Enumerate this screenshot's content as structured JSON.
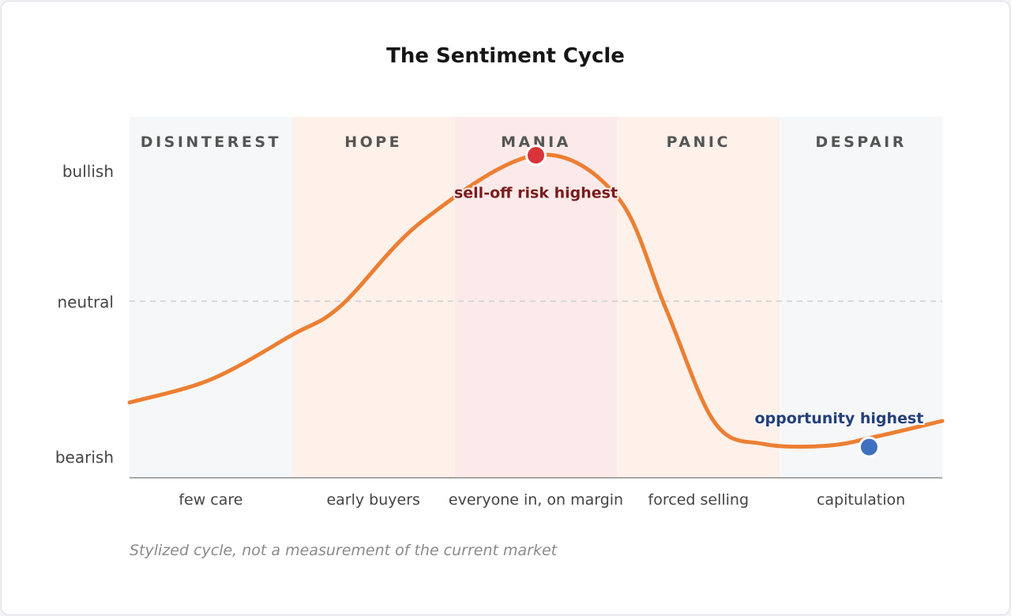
{
  "chart_data": {
    "type": "line",
    "title": "The Sentiment Cycle",
    "caption": "Stylized cycle, not a measurement of the current market",
    "phases": [
      {
        "name": "DISINTEREST",
        "description": "few care",
        "color": "#f6f7f9"
      },
      {
        "name": "HOPE",
        "description": "early buyers",
        "color": "#fdf1ea"
      },
      {
        "name": "MANIA",
        "description": "everyone in, on margin",
        "color": "#fceaea"
      },
      {
        "name": "PANIC",
        "description": "forced selling",
        "color": "#fdf1ea"
      },
      {
        "name": "DESPAIR",
        "description": "capitulation",
        "color": "#f6f7f9"
      }
    ],
    "y_ticks": [
      {
        "label": "bullish",
        "value": 1
      },
      {
        "label": "neutral",
        "value": 0
      },
      {
        "label": "bearish",
        "value": -1
      }
    ],
    "xlim": [
      0,
      5
    ],
    "ylim": [
      -1.15,
      1.2
    ],
    "neutral_line": 0,
    "series": [
      {
        "color": "#ec7f33",
        "x": [
          0,
          0.5,
          1.0,
          1.3,
          1.8,
          2.5,
          3.0,
          3.3,
          3.6,
          3.9,
          4.3,
          4.6,
          5.0
        ],
        "y": [
          -0.66,
          -0.51,
          -0.22,
          -0.03,
          0.52,
          0.95,
          0.68,
          -0.05,
          -0.79,
          -0.93,
          -0.94,
          -0.88,
          -0.78
        ]
      }
    ],
    "annotations": [
      {
        "text": "sell-off risk highest",
        "x": 2.5,
        "y": 0.95,
        "color": "#7a1d1d",
        "marker_color": "#d9333a"
      },
      {
        "text": "opportunity highest",
        "x": 4.55,
        "y": -0.95,
        "color": "#243f7a",
        "marker_color": "#3f6fbf"
      }
    ]
  }
}
